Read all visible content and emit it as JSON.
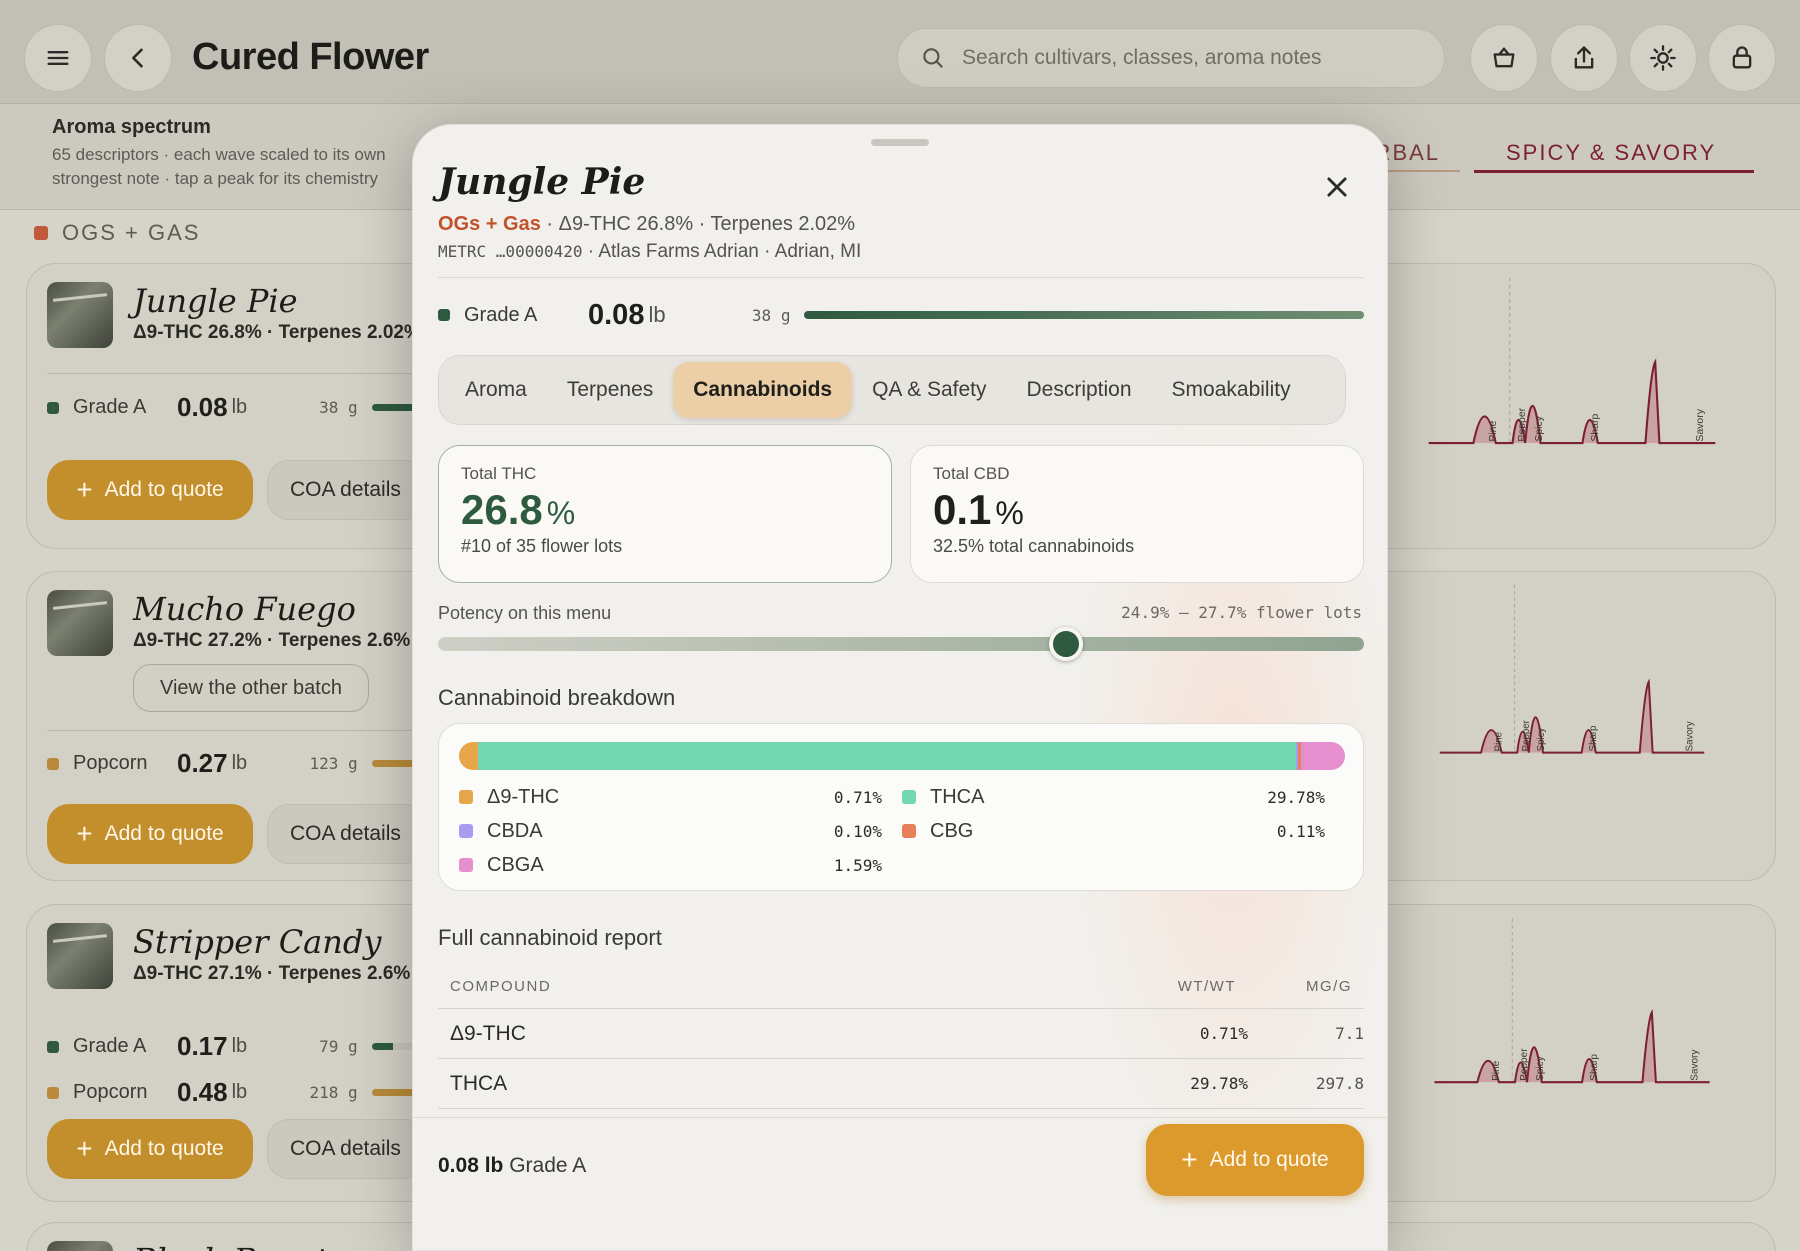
{
  "header": {
    "title": "Cured Flower",
    "search_placeholder": "Search cultivars, classes, aroma notes"
  },
  "aroma": {
    "title": "Aroma spectrum",
    "subtitle_line1": "65 descriptors · each wave scaled to its own",
    "subtitle_line2": "strongest note · tap a peak for its chemistry",
    "tab_herbal": "HERBAL",
    "tab_spicy": "SPICY & SAVORY",
    "wave_labels": [
      "Pine",
      "Pepper",
      "Spicy",
      "Sharp",
      "Savory"
    ]
  },
  "section": {
    "label": "OGS + GAS",
    "color": "#c05a3a"
  },
  "cards": [
    {
      "name": "Jungle Pie",
      "meta": "Δ9-THC 26.8%  ·  Terpenes 2.02%",
      "rows": [
        {
          "label": "Grade A",
          "value": "0.08",
          "unit": "lb",
          "grams": "38 g",
          "color": "#2e5a40"
        }
      ],
      "add_label": "Add to quote",
      "coa_label": "COA details"
    },
    {
      "name": "Mucho Fuego",
      "meta": "Δ9-THC 27.2%  ·  Terpenes 2.6%",
      "other_batch": "View the other batch",
      "rows": [
        {
          "label": "Popcorn",
          "value": "0.27",
          "unit": "lb",
          "grams": "123 g",
          "color": "#b88a3a"
        }
      ],
      "add_label": "Add to quote",
      "coa_label": "COA details"
    },
    {
      "name": "Stripper Candy",
      "meta": "Δ9-THC 27.1%  ·  Terpenes 2.6%",
      "rows": [
        {
          "label": "Grade A",
          "value": "0.17",
          "unit": "lb",
          "grams": "79 g",
          "color": "#2e5a40"
        },
        {
          "label": "Popcorn",
          "value": "0.48",
          "unit": "lb",
          "grams": "218 g",
          "color": "#b88a3a"
        }
      ],
      "add_label": "Add to quote",
      "coa_label": "COA details"
    },
    {
      "name": "Black Beauty"
    }
  ],
  "modal": {
    "title": "Jungle Pie",
    "class": "OGs + Gas",
    "sub_rest": " · Δ9-THC 26.8% · Terpenes 2.02%",
    "metrc": "METRC …00000420",
    "farm": " · Atlas Farms Adrian · Adrian, MI",
    "grade": {
      "label": "Grade A",
      "value": "0.08",
      "unit": "lb",
      "grams": "38 g"
    },
    "tabs": [
      "Aroma",
      "Terpenes",
      "Cannabinoids",
      "QA & Safety",
      "Description",
      "Smoakability"
    ],
    "active_tab": "Cannabinoids",
    "thc": {
      "label": "Total THC",
      "value": "26.8",
      "unit": "%",
      "note": "#10 of 35 flower lots",
      "color": "#2e5a40"
    },
    "cbd": {
      "label": "Total CBD",
      "value": "0.1",
      "unit": "%",
      "note": "32.5% total cannabinoids",
      "color": "#1f1f1b"
    },
    "potency": {
      "label": "Potency on this menu",
      "range": "24.9% — 27.7% flower lots",
      "min": 24.9,
      "max": 27.7,
      "value": 26.8
    },
    "breakdown_title": "Cannabinoid breakdown",
    "breakdown": [
      {
        "name": "Δ9-THC",
        "value": 0.71,
        "display": "0.71%",
        "color": "#e8a64a"
      },
      {
        "name": "THCA",
        "value": 29.78,
        "display": "29.78%",
        "color": "#72d8b3"
      },
      {
        "name": "CBDA",
        "value": 0.1,
        "display": "0.10%",
        "color": "#a99cf0"
      },
      {
        "name": "CBG",
        "value": 0.11,
        "display": "0.11%",
        "color": "#e8805a"
      },
      {
        "name": "CBGA",
        "value": 1.59,
        "display": "1.59%",
        "color": "#e58fcf"
      }
    ],
    "report_title": "Full cannabinoid report",
    "report_headers": {
      "compound": "COMPOUND",
      "wt": "WT/WT",
      "mg": "MG/G"
    },
    "report_rows": [
      {
        "compound": "Δ9-THC",
        "wt": "0.71%",
        "mg": "7.1"
      },
      {
        "compound": "THCA",
        "wt": "29.78%",
        "mg": "297.8"
      }
    ],
    "footer": {
      "amount": "0.08 lb",
      "grade": "Grade A",
      "add_label": "Add to quote"
    }
  }
}
